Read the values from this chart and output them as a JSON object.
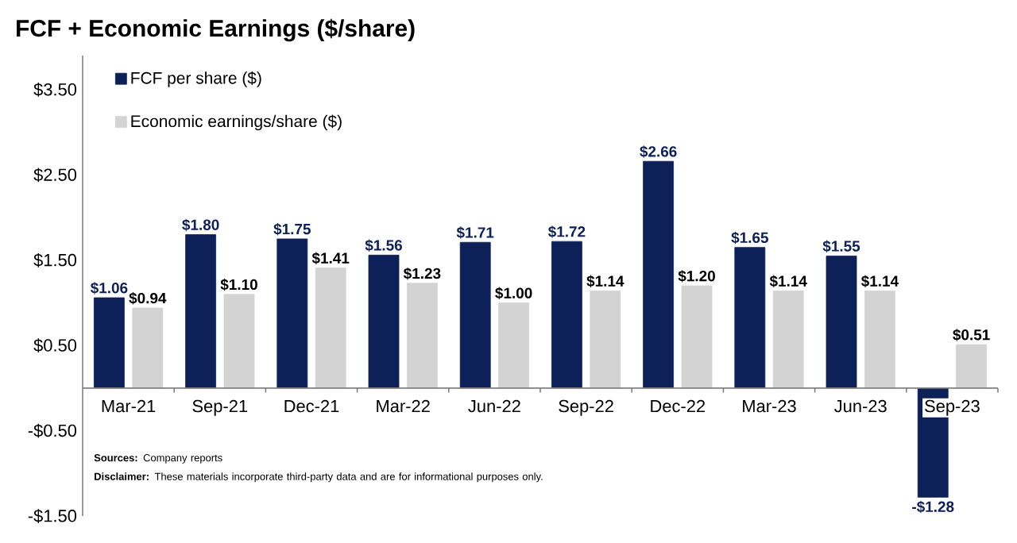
{
  "chart_data": {
    "type": "bar",
    "title": "FCF + Economic Earnings ($/share)",
    "categories": [
      "Mar-21",
      "Sep-21",
      "Dec-21",
      "Mar-22",
      "Jun-22",
      "Sep-22",
      "Dec-22",
      "Mar-23",
      "Jun-23",
      "Sep-23"
    ],
    "series": [
      {
        "name": "FCF per share ($)",
        "color": "#0d2158",
        "values": [
          1.06,
          1.8,
          1.75,
          1.56,
          1.71,
          1.72,
          2.66,
          1.65,
          1.55,
          -1.28
        ],
        "value_labels": [
          "$1.06",
          "$1.80",
          "$1.75",
          "$1.56",
          "$1.71",
          "$1.72",
          "$2.66",
          "$1.65",
          "$1.55",
          "-$1.28"
        ]
      },
      {
        "name": "Economic earnings/share ($)",
        "color": "#d3d3d3",
        "values": [
          0.94,
          1.1,
          1.41,
          1.23,
          1.0,
          1.14,
          1.2,
          1.14,
          1.14,
          0.51
        ],
        "value_labels": [
          "$0.94",
          "$1.10",
          "$1.41",
          "$1.23",
          "$1.00",
          "$1.14",
          "$1.20",
          "$1.14",
          "$1.14",
          "$0.51"
        ]
      }
    ],
    "ylim": [
      -1.5,
      3.9
    ],
    "yticks": [
      {
        "value": -1.5,
        "label": "-$1.50"
      },
      {
        "value": -0.5,
        "label": "-$0.50"
      },
      {
        "value": 0.5,
        "label": "$0.50"
      },
      {
        "value": 1.5,
        "label": "$1.50"
      },
      {
        "value": 2.5,
        "label": "$2.50"
      },
      {
        "value": 3.5,
        "label": "$3.50"
      }
    ],
    "legend": "top left",
    "annotations": [
      "**Sources:** Company reports",
      "**Disclaimer:** These materials incorporate third-party data and are for informational purposes only."
    ]
  }
}
